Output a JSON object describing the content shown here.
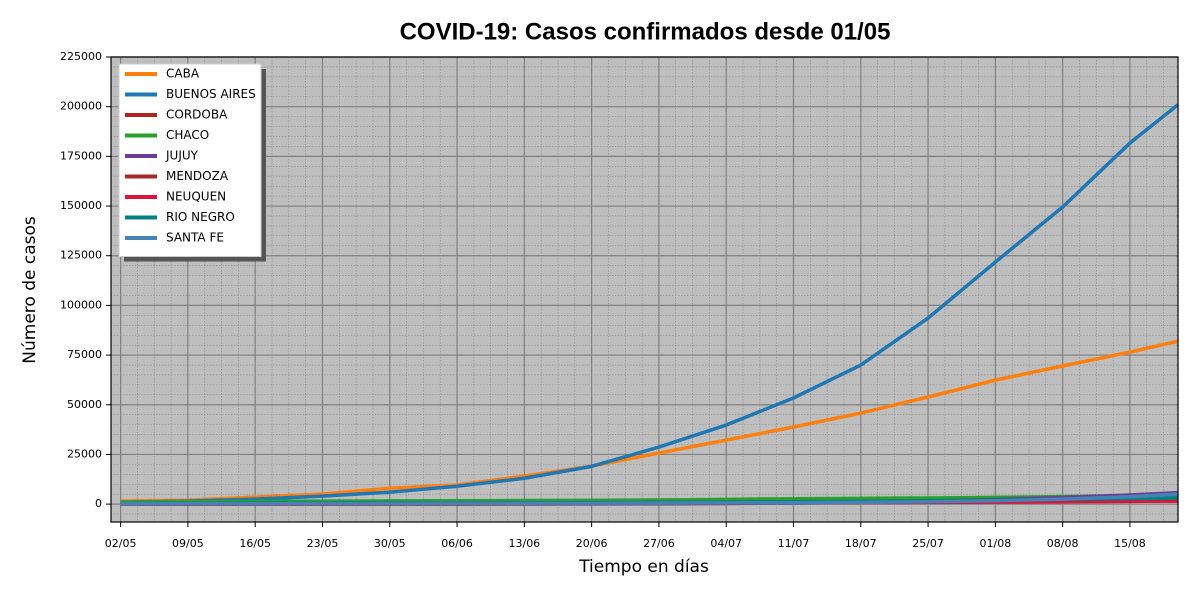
{
  "chart_data": {
    "type": "line",
    "title": "COVID-19: Casos confirmados desde 01/05",
    "xlabel": "Tiempo en días",
    "ylabel": "Número de casos",
    "x": [
      0,
      7,
      14,
      21,
      28,
      35,
      42,
      49,
      56,
      63,
      70,
      77,
      84,
      91,
      98,
      105,
      110
    ],
    "xlim": [
      -1,
      110
    ],
    "xticks": [
      {
        "value": 0,
        "label": "02/05"
      },
      {
        "value": 7,
        "label": "09/05"
      },
      {
        "value": 14,
        "label": "16/05"
      },
      {
        "value": 21,
        "label": "23/05"
      },
      {
        "value": 28,
        "label": "30/05"
      },
      {
        "value": 35,
        "label": "06/06"
      },
      {
        "value": 42,
        "label": "13/06"
      },
      {
        "value": 49,
        "label": "20/06"
      },
      {
        "value": 56,
        "label": "27/06"
      },
      {
        "value": 63,
        "label": "04/07"
      },
      {
        "value": 70,
        "label": "11/07"
      },
      {
        "value": 77,
        "label": "18/07"
      },
      {
        "value": 84,
        "label": "25/07"
      },
      {
        "value": 91,
        "label": "01/08"
      },
      {
        "value": 98,
        "label": "08/08"
      },
      {
        "value": 105,
        "label": "15/08"
      }
    ],
    "ylim": [
      -9000,
      225000
    ],
    "yticks": [
      0,
      25000,
      50000,
      75000,
      100000,
      125000,
      150000,
      175000,
      200000,
      225000
    ],
    "grid": true,
    "legend": "upper left",
    "series": [
      {
        "name": "CABA",
        "color": "#ff7f0e",
        "values": [
          1500,
          2000,
          3500,
          5000,
          8000,
          9600,
          14100,
          19100,
          25700,
          32200,
          38800,
          45800,
          53900,
          62400,
          69500,
          76500,
          82000
        ]
      },
      {
        "name": "BUENOS AIRES",
        "color": "#1f77b4",
        "values": [
          1000,
          1500,
          2500,
          4000,
          6000,
          9000,
          13000,
          19000,
          28700,
          39800,
          53400,
          70000,
          93600,
          121800,
          149500,
          181700,
          201000
        ]
      },
      {
        "name": "CORDOBA",
        "color": "#b22222",
        "values": [
          300,
          400,
          450,
          500,
          550,
          600,
          650,
          700,
          750,
          800,
          900,
          1000,
          1100,
          1300,
          1500,
          1800,
          2000
        ]
      },
      {
        "name": "CHACO",
        "color": "#2ca02c",
        "values": [
          1000,
          1200,
          1400,
          1500,
          1600,
          1700,
          1800,
          1900,
          2100,
          2400,
          2700,
          2900,
          3100,
          3400,
          3800,
          4200,
          4500
        ]
      },
      {
        "name": "JUJUY",
        "color": "#6a3d9a",
        "values": [
          0,
          0,
          0,
          0,
          0,
          0,
          50,
          100,
          200,
          300,
          500,
          900,
          1500,
          2300,
          3300,
          4600,
          5800
        ]
      },
      {
        "name": "MENDOZA",
        "color": "#a52a2a",
        "values": [
          100,
          100,
          100,
          150,
          150,
          200,
          250,
          300,
          400,
          500,
          700,
          900,
          1200,
          1500,
          1800,
          2200,
          2500
        ]
      },
      {
        "name": "NEUQUEN",
        "color": "#dc143c",
        "values": [
          100,
          150,
          200,
          250,
          300,
          350,
          400,
          450,
          500,
          600,
          700,
          800,
          900,
          1000,
          1200,
          1400,
          1500
        ]
      },
      {
        "name": "RIO NEGRO",
        "color": "#008080",
        "values": [
          300,
          400,
          500,
          550,
          600,
          650,
          700,
          750,
          850,
          1000,
          1200,
          1400,
          1700,
          2000,
          2400,
          2800,
          3000
        ]
      },
      {
        "name": "SANTA FE",
        "color": "#4682b4",
        "values": [
          200,
          250,
          250,
          300,
          300,
          350,
          400,
          450,
          500,
          600,
          700,
          900,
          1200,
          1700,
          2500,
          3700,
          5000
        ]
      }
    ]
  }
}
